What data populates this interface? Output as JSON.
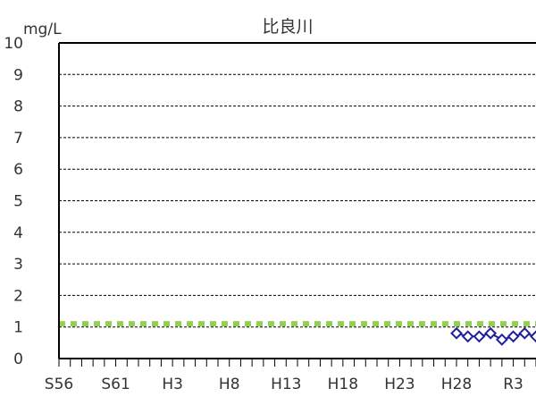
{
  "chart_data": {
    "type": "line",
    "title": "比良川",
    "ylabel": "mg/L",
    "xlabel": "",
    "ylim": [
      0,
      10
    ],
    "y_ticks": [
      0,
      1,
      2,
      3,
      4,
      5,
      6,
      7,
      8,
      9,
      10
    ],
    "x_tick_labels": [
      "S56",
      "S61",
      "H3",
      "H8",
      "H13",
      "H18",
      "H23",
      "H28",
      "R3"
    ],
    "years": [
      "S56",
      "S57",
      "S58",
      "S59",
      "S60",
      "S61",
      "S62",
      "S63",
      "H1",
      "H2",
      "H3",
      "H4",
      "H5",
      "H6",
      "H7",
      "H8",
      "H9",
      "H10",
      "H11",
      "H12",
      "H13",
      "H14",
      "H15",
      "H16",
      "H17",
      "H18",
      "H19",
      "H20",
      "H21",
      "H22",
      "H23",
      "H24",
      "H25",
      "H26",
      "H27",
      "H28",
      "H29",
      "H30",
      "R1",
      "R2",
      "R3",
      "R4",
      "R5"
    ],
    "grid": "y-dashed",
    "legend": "none",
    "series": [
      {
        "style": "dashed-line",
        "color": "#92D050",
        "values": [
          1.1,
          1.1,
          1.1,
          1.1,
          1.1,
          1.1,
          1.1,
          1.1,
          1.1,
          1.1,
          1.1,
          1.1,
          1.1,
          1.1,
          1.1,
          1.1,
          1.1,
          1.1,
          1.1,
          1.1,
          1.1,
          1.1,
          1.1,
          1.1,
          1.1,
          1.1,
          1.1,
          1.1,
          1.1,
          1.1,
          1.1,
          1.1,
          1.1,
          1.1,
          1.1,
          1.1,
          1.1,
          1.1,
          1.1,
          1.1,
          1.1,
          1.1,
          1.1
        ]
      },
      {
        "style": "line-diamond",
        "color": "#1F1FA0",
        "values": [
          null,
          null,
          null,
          null,
          null,
          null,
          null,
          null,
          null,
          null,
          null,
          null,
          null,
          null,
          null,
          null,
          null,
          null,
          null,
          null,
          null,
          null,
          null,
          null,
          null,
          null,
          null,
          null,
          null,
          null,
          null,
          null,
          null,
          null,
          null,
          0.8,
          0.7,
          0.7,
          0.8,
          0.6,
          0.7,
          0.8,
          0.7
        ]
      }
    ]
  }
}
